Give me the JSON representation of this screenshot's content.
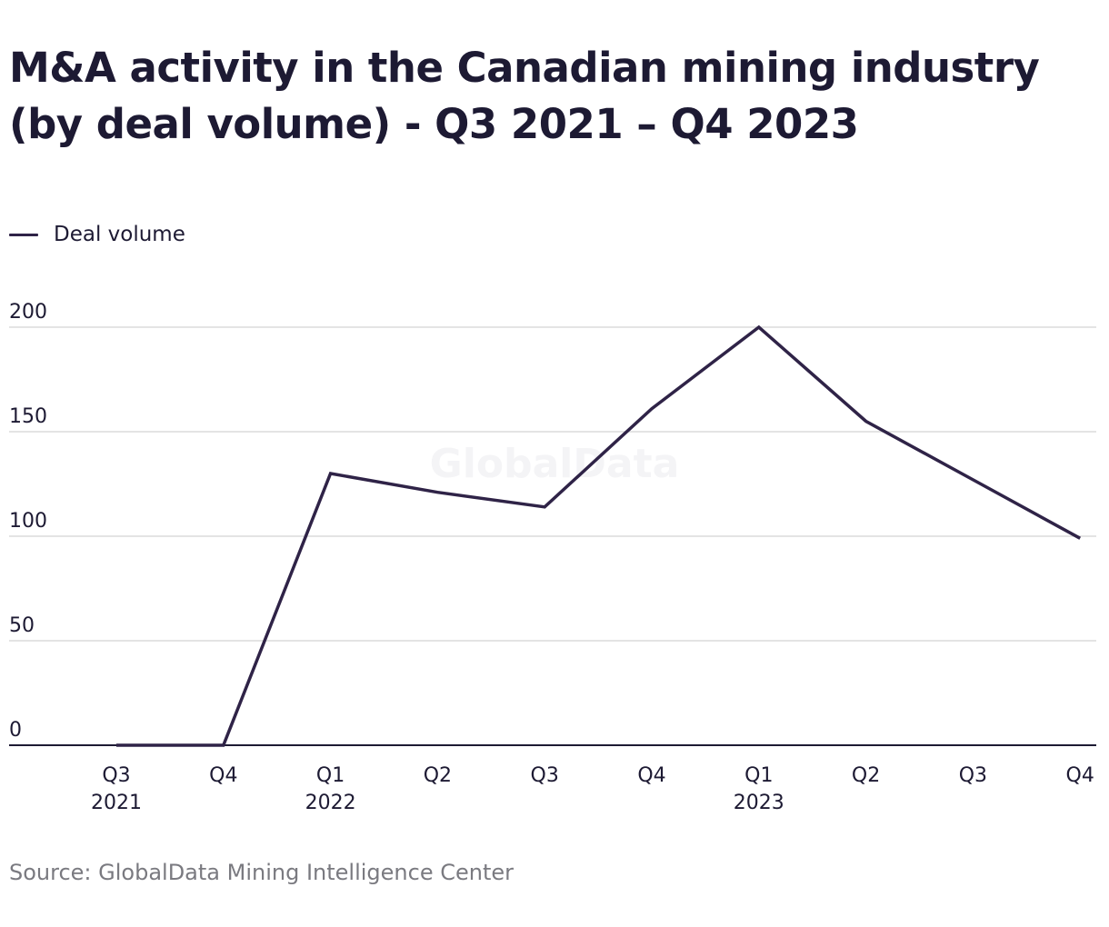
{
  "chart_data": {
    "type": "line",
    "title": "M&A activity in the Canadian mining industry (by deal volume) - Q3 2021 – Q4 2023",
    "categories": [
      [
        "Q3",
        "2021"
      ],
      [
        "Q4",
        ""
      ],
      [
        "Q1",
        "2022"
      ],
      [
        "Q2",
        ""
      ],
      [
        "Q3",
        ""
      ],
      [
        "Q4",
        ""
      ],
      [
        "Q1",
        "2023"
      ],
      [
        "Q2",
        ""
      ],
      [
        "Q3",
        ""
      ],
      [
        "Q4",
        ""
      ]
    ],
    "series": [
      {
        "name": "Deal volume",
        "values": [
          0,
          0,
          130,
          121,
          114,
          161,
          200,
          155,
          127,
          99
        ]
      }
    ],
    "yticks": [
      0,
      50,
      100,
      150,
      200
    ],
    "ylim": [
      0,
      200
    ],
    "grid": true,
    "legend_position": "top-left",
    "line_color": "#2f2347",
    "grid_color": "#dcdcdc",
    "axis_color": "#1d1a33",
    "watermark": "GlobalData",
    "source": "Source: GlobalData Mining Intelligence Center"
  }
}
